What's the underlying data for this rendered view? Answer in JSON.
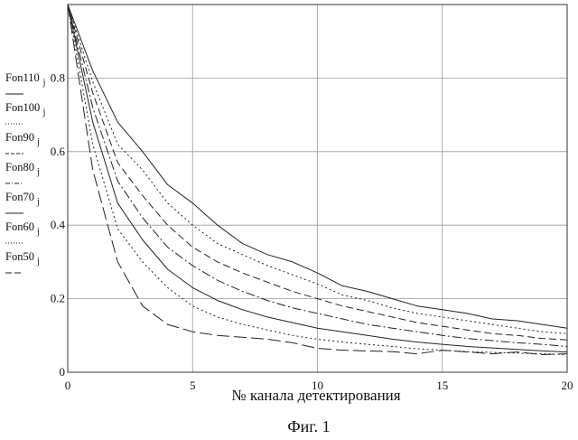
{
  "chart_data": {
    "type": "line",
    "xlabel": "№ канала детектирования",
    "caption": "Фиг. 1",
    "xlim": [
      0,
      20
    ],
    "ylim": [
      0,
      1
    ],
    "x_ticks": [
      "0",
      "5",
      "10",
      "15",
      "20"
    ],
    "y_ticks": [
      "0",
      "0.2",
      "0.4",
      "0.6",
      "0.8"
    ],
    "grid": true,
    "legend_position": "left",
    "x": [
      0,
      1,
      2,
      3,
      4,
      5,
      6,
      7,
      8,
      9,
      10,
      11,
      12,
      13,
      14,
      15,
      16,
      17,
      18,
      19,
      20
    ],
    "series": [
      {
        "name": "Fon110",
        "subscript": "j",
        "dash": "",
        "values": [
          1.0,
          0.82,
          0.68,
          0.6,
          0.51,
          0.46,
          0.4,
          0.35,
          0.32,
          0.3,
          0.27,
          0.235,
          0.22,
          0.2,
          0.18,
          0.17,
          0.16,
          0.145,
          0.14,
          0.13,
          0.12
        ]
      },
      {
        "name": "Fon100",
        "subscript": "j",
        "dash": "2,3",
        "values": [
          1.0,
          0.79,
          0.62,
          0.55,
          0.46,
          0.4,
          0.35,
          0.32,
          0.29,
          0.265,
          0.24,
          0.21,
          0.195,
          0.175,
          0.16,
          0.15,
          0.14,
          0.13,
          0.12,
          0.11,
          0.105
        ]
      },
      {
        "name": "Fon90",
        "subscript": "j",
        "dash": "8,4",
        "values": [
          1.0,
          0.76,
          0.57,
          0.48,
          0.4,
          0.34,
          0.3,
          0.27,
          0.245,
          0.22,
          0.2,
          0.18,
          0.165,
          0.15,
          0.135,
          0.125,
          0.115,
          0.105,
          0.1,
          0.092,
          0.088
        ]
      },
      {
        "name": "Fon80",
        "subscript": "j",
        "dash": "10,3,2,3",
        "values": [
          1.0,
          0.72,
          0.52,
          0.42,
          0.34,
          0.29,
          0.25,
          0.22,
          0.195,
          0.175,
          0.16,
          0.145,
          0.13,
          0.12,
          0.11,
          0.1,
          0.092,
          0.086,
          0.08,
          0.076,
          0.07
        ]
      },
      {
        "name": "Fon70",
        "subscript": "j",
        "dash": "",
        "values": [
          1.0,
          0.68,
          0.46,
          0.36,
          0.28,
          0.23,
          0.195,
          0.17,
          0.15,
          0.135,
          0.12,
          0.11,
          0.1,
          0.09,
          0.082,
          0.076,
          0.07,
          0.066,
          0.062,
          0.058,
          0.055
        ]
      },
      {
        "name": "Fon60",
        "subscript": "j",
        "dash": "2,3",
        "values": [
          1.0,
          0.62,
          0.39,
          0.3,
          0.23,
          0.18,
          0.15,
          0.13,
          0.115,
          0.1,
          0.09,
          0.082,
          0.076,
          0.07,
          0.064,
          0.06,
          0.056,
          0.054,
          0.052,
          0.05,
          0.048
        ]
      },
      {
        "name": "Fon50",
        "subscript": "j",
        "dash": "14,5",
        "values": [
          1.0,
          0.55,
          0.3,
          0.18,
          0.13,
          0.11,
          0.1,
          0.095,
          0.09,
          0.08,
          0.065,
          0.06,
          0.058,
          0.056,
          0.05,
          0.06,
          0.055,
          0.05,
          0.055,
          0.048,
          0.05
        ]
      }
    ]
  }
}
